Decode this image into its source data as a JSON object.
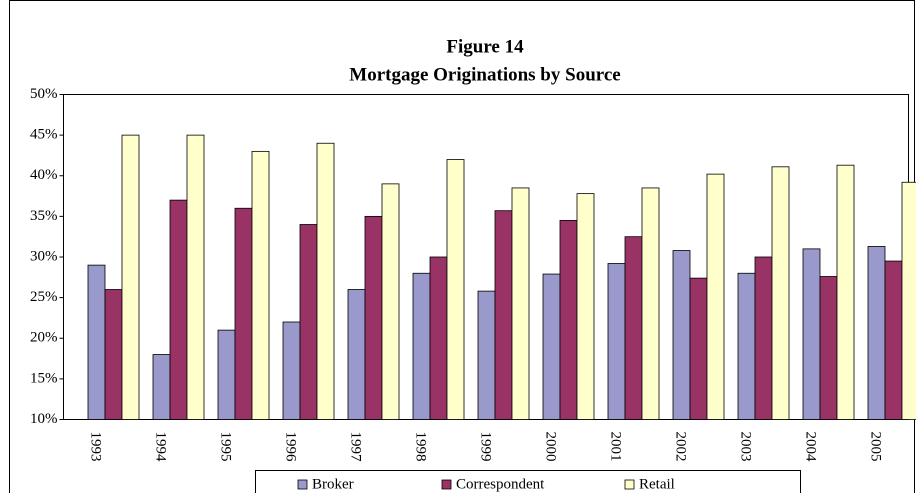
{
  "chart_data": {
    "type": "bar",
    "title": "Figure 14",
    "subtitle": "Mortgage Originations by Source",
    "categories": [
      "1993",
      "1994",
      "1995",
      "1996",
      "1997",
      "1998",
      "1999",
      "2000",
      "2001",
      "2002",
      "2003",
      "2004",
      "2005"
    ],
    "series": [
      {
        "name": "Broker",
        "color": "#9999cc",
        "values": [
          29,
          18,
          21,
          22,
          26,
          28,
          25.8,
          27.9,
          29.2,
          30.8,
          28,
          31,
          31.3
        ]
      },
      {
        "name": "Correspondent",
        "color": "#993366",
        "values": [
          26,
          37,
          36,
          34,
          35,
          30,
          35.7,
          34.5,
          32.5,
          27.4,
          30,
          27.6,
          29.5
        ]
      },
      {
        "name": "Retail",
        "color": "#ffffcc",
        "values": [
          45,
          45,
          43,
          44,
          39,
          42,
          38.5,
          37.8,
          38.5,
          40.2,
          41.1,
          41.3,
          39.2
        ]
      }
    ],
    "ylim": [
      10,
      50
    ],
    "yticks": [
      {
        "value": 10,
        "label": "10%"
      },
      {
        "value": 15,
        "label": "15%"
      },
      {
        "value": 20,
        "label": "20%"
      },
      {
        "value": 25,
        "label": "25%"
      },
      {
        "value": 30,
        "label": "30%"
      },
      {
        "value": 35,
        "label": "35%"
      },
      {
        "value": 40,
        "label": "40%"
      },
      {
        "value": 45,
        "label": "45%"
      },
      {
        "value": 50,
        "label": "50%"
      }
    ],
    "grid": false,
    "legend": "bottom"
  }
}
